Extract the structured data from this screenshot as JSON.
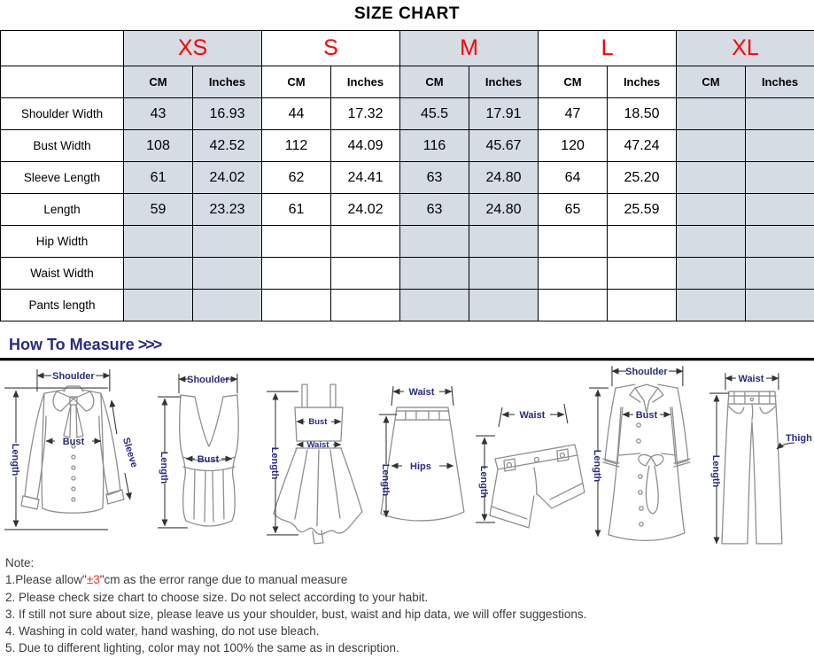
{
  "title": "SIZE CHART",
  "colors": {
    "accent_red": "#ff0000",
    "navy": "#272c83",
    "header_shade": "#d6dce4"
  },
  "table": {
    "sizes": [
      {
        "label": "XS",
        "shaded": true
      },
      {
        "label": "S",
        "shaded": false
      },
      {
        "label": "M",
        "shaded": true
      },
      {
        "label": "L",
        "shaded": false
      },
      {
        "label": "XL",
        "shaded": true
      }
    ],
    "unit_headers": [
      "CM",
      "Inches"
    ],
    "rows": [
      {
        "label": "Shoulder Width",
        "values": [
          "43",
          "16.93",
          "44",
          "17.32",
          "45.5",
          "17.91",
          "47",
          "18.50",
          "",
          ""
        ]
      },
      {
        "label": "Bust Width",
        "values": [
          "108",
          "42.52",
          "112",
          "44.09",
          "116",
          "45.67",
          "120",
          "47.24",
          "",
          ""
        ]
      },
      {
        "label": "Sleeve Length",
        "values": [
          "61",
          "24.02",
          "62",
          "24.41",
          "63",
          "24.80",
          "64",
          "25.20",
          "",
          ""
        ]
      },
      {
        "label": "Length",
        "values": [
          "59",
          "23.23",
          "61",
          "24.02",
          "63",
          "24.80",
          "65",
          "25.59",
          "",
          ""
        ]
      },
      {
        "label": "Hip Width",
        "values": [
          "",
          "",
          "",
          "",
          "",
          "",
          "",
          "",
          "",
          ""
        ]
      },
      {
        "label": "Waist Width",
        "values": [
          "",
          "",
          "",
          "",
          "",
          "",
          "",
          "",
          "",
          ""
        ]
      },
      {
        "label": "Pants length",
        "values": [
          "",
          "",
          "",
          "",
          "",
          "",
          "",
          "",
          "",
          ""
        ]
      }
    ]
  },
  "measure": {
    "heading": "How To Measure",
    "chevrons": ">>>",
    "diagrams": [
      {
        "name": "blouse",
        "labels": [
          "Shoulder",
          "Length",
          "Bust",
          "Sleeve"
        ]
      },
      {
        "name": "tank-top",
        "labels": [
          "Shoulder",
          "Length",
          "Bust"
        ]
      },
      {
        "name": "dress",
        "labels": [
          "Length",
          "Bust",
          "Waist"
        ]
      },
      {
        "name": "skirt",
        "labels": [
          "Waist",
          "Length",
          "Hips"
        ]
      },
      {
        "name": "shorts",
        "labels": [
          "Waist",
          "Length"
        ]
      },
      {
        "name": "coat",
        "labels": [
          "Shoulder",
          "Length",
          "Bust"
        ]
      },
      {
        "name": "pants",
        "labels": [
          "Waist",
          "Length",
          "Thigh"
        ]
      }
    ]
  },
  "notes": {
    "heading": "Note:",
    "note1_prefix": "1.Please allow\"",
    "note1_highlight": "±3",
    "note1_suffix": "\"cm as the error range due to manual measure",
    "items": [
      "2. Please check size chart to choose size. Do not select according to your habit.",
      "3. If still not sure about size, please leave us your shoulder, bust, waist and hip data, we will offer suggestions.",
      "4. Washing in cold water, hand washing, do not use bleach.",
      "5. Due to different lighting, color may not 100% the same as in description."
    ]
  }
}
